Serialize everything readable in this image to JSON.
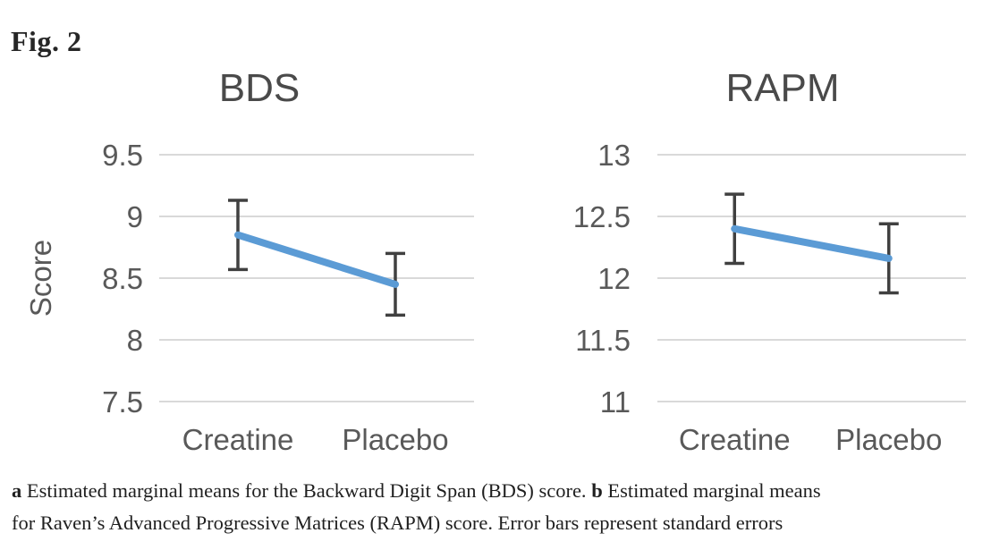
{
  "figure": {
    "label": "Fig. 2"
  },
  "caption": {
    "lines": [
      {
        "segments": [
          {
            "text": "a",
            "bold": true
          },
          {
            "text": " Estimated marginal means for the Backward Digit Span (BDS) score. ",
            "bold": false
          },
          {
            "text": "b",
            "bold": true
          },
          {
            "text": " Estimated marginal means",
            "bold": false
          }
        ]
      },
      {
        "segments": [
          {
            "text": "for Raven’s Advanced Progressive Matrices (RAPM) score. Error bars represent standard errors",
            "bold": false
          }
        ]
      }
    ]
  },
  "colors": {
    "line": "#5B9BD5",
    "error_bar": "#404040",
    "gridline": "#D9D9D9",
    "axis_text": "#595959",
    "title_text": "#4A4A4A",
    "caption_text": "#1F1F1F"
  },
  "chart_data": [
    {
      "type": "line",
      "title": "BDS",
      "ylabel": "Score",
      "xlabel": "",
      "categories": [
        "Creatine",
        "Placebo"
      ],
      "series": [
        {
          "name": "Estimated marginal means (BDS)",
          "values": [
            8.85,
            8.45
          ],
          "errors": [
            0.28,
            0.25
          ]
        }
      ],
      "ylim": [
        7.5,
        9.5
      ],
      "yticks": [
        7.5,
        8,
        8.5,
        9,
        9.5
      ],
      "grid": true,
      "legend": false,
      "error_bars": "standard errors"
    },
    {
      "type": "line",
      "title": "RAPM",
      "ylabel": "",
      "xlabel": "",
      "categories": [
        "Creatine",
        "Placebo"
      ],
      "series": [
        {
          "name": "Estimated marginal means (RAPM)",
          "values": [
            12.4,
            12.16
          ],
          "errors": [
            0.28,
            0.28
          ]
        }
      ],
      "ylim": [
        11,
        13
      ],
      "yticks": [
        11,
        11.5,
        12,
        12.5,
        13
      ],
      "grid": true,
      "legend": false,
      "error_bars": "standard errors"
    }
  ]
}
